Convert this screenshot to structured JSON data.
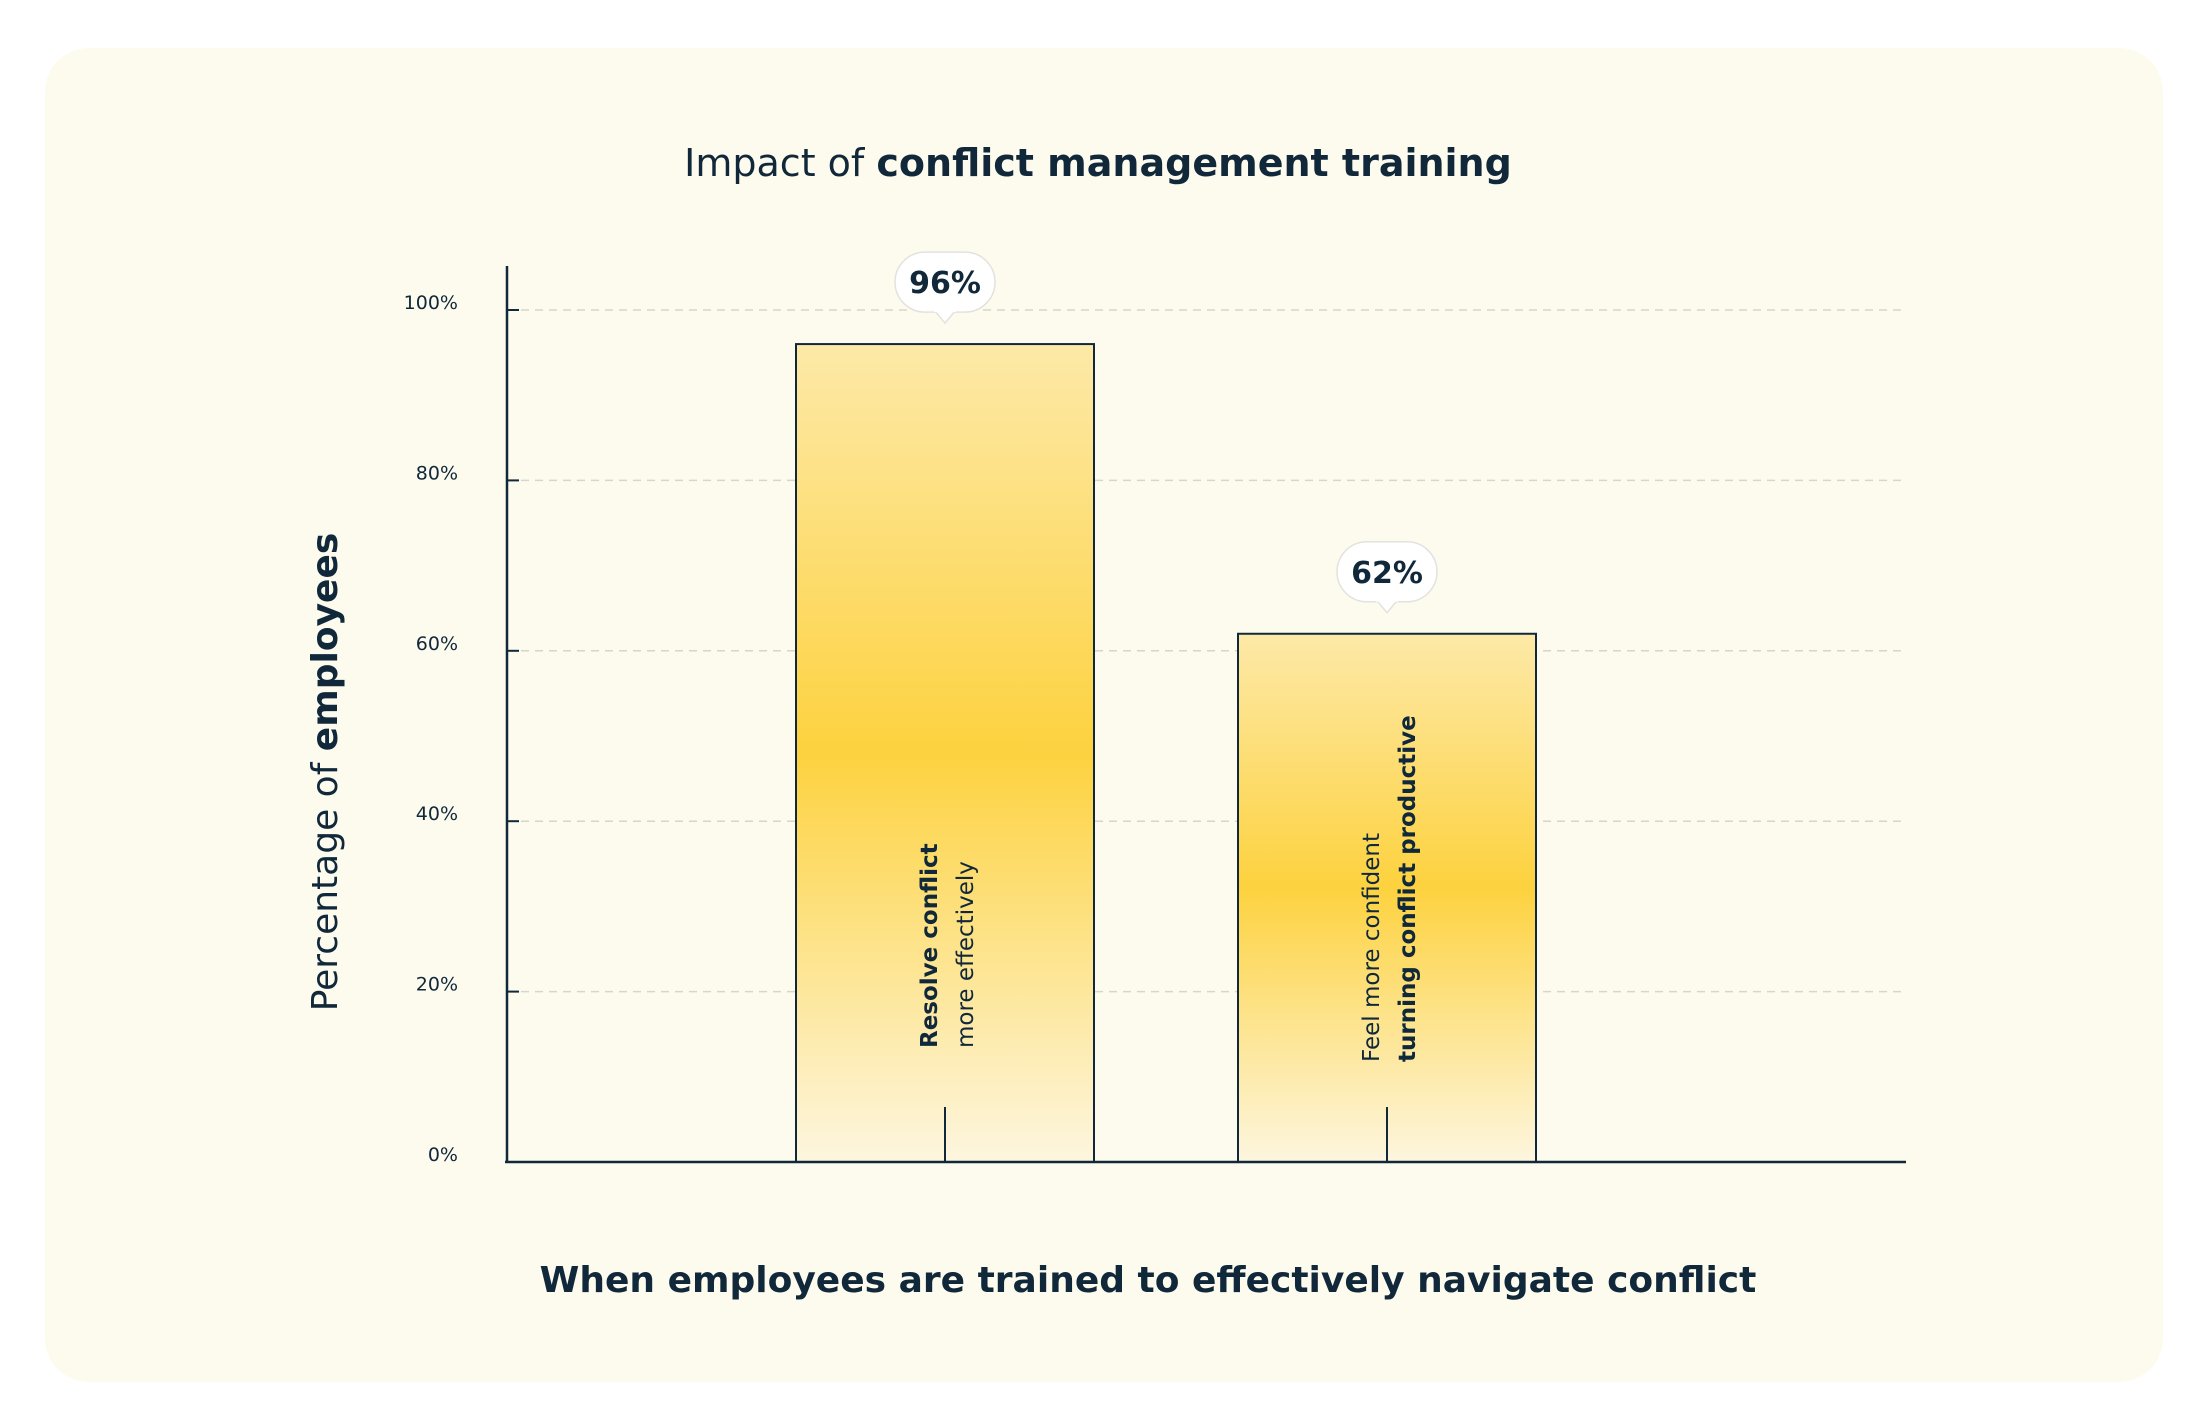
{
  "chart_data": {
    "type": "bar",
    "title_parts": [
      "Impact of ",
      "conflict management training"
    ],
    "ylabel_parts": [
      "Percentage of ",
      "employees"
    ],
    "xlabel": "When employees are trained to effectively navigate conflict",
    "ylim": [
      0,
      105
    ],
    "yticks": [
      0,
      20,
      40,
      60,
      80,
      100
    ],
    "ytick_labels": [
      "0%",
      "20%",
      "40%",
      "60%",
      "80%",
      "100%"
    ],
    "grid": true,
    "categories": [
      {
        "line1": "Resolve conflict",
        "line2": "more effectively",
        "bold_line": 1
      },
      {
        "line1": "Feel more confident",
        "line2": "turning conflict productive",
        "bold_line": 2
      }
    ],
    "values": [
      96,
      62
    ],
    "value_labels": [
      "96%",
      "62%"
    ],
    "colors": {
      "bar_top": "#fde9a8",
      "bar_peak": "#fdd23f",
      "bar_bottom": "#fdf6df",
      "bar_stroke": "#10283a",
      "axis": "#10283a",
      "grid": "#d8d6cc",
      "text": "#10283a",
      "card": "#fdfaee"
    }
  }
}
